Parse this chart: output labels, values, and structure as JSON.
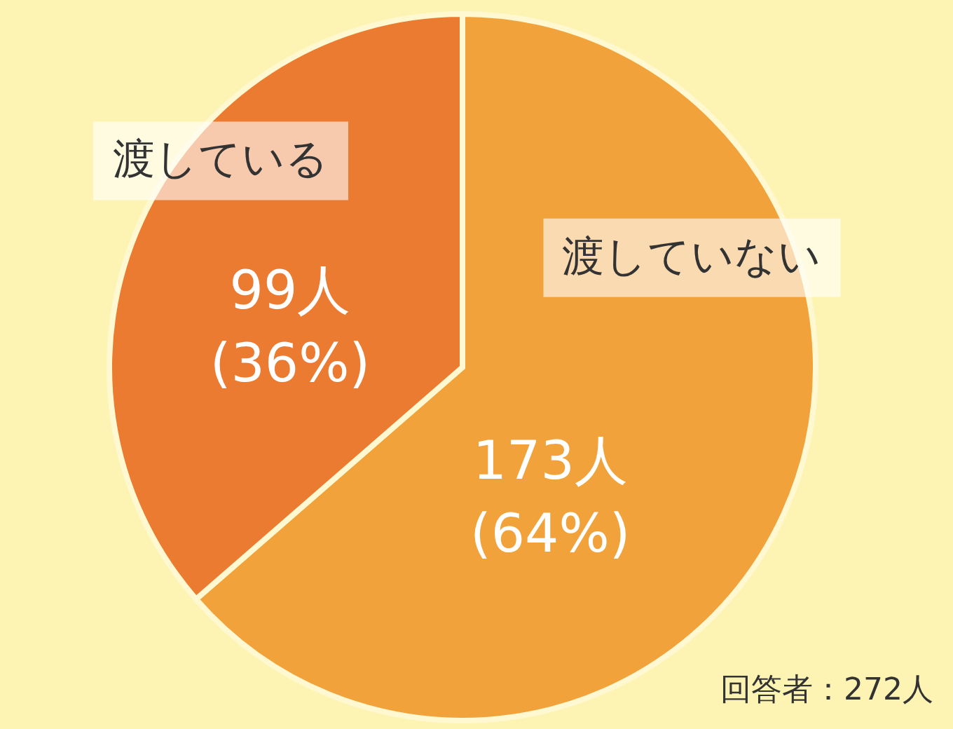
{
  "chart_data": {
    "type": "pie",
    "categories": [
      "渡していない",
      "渡している"
    ],
    "values": [
      173,
      99
    ],
    "colors": [
      "#f2a23a",
      "#ec7b32"
    ],
    "value_labels": [
      "173人 (64%)",
      "99人 (36%)"
    ],
    "annotations": [
      "回答者：272人"
    ],
    "legend": false
  }
}
